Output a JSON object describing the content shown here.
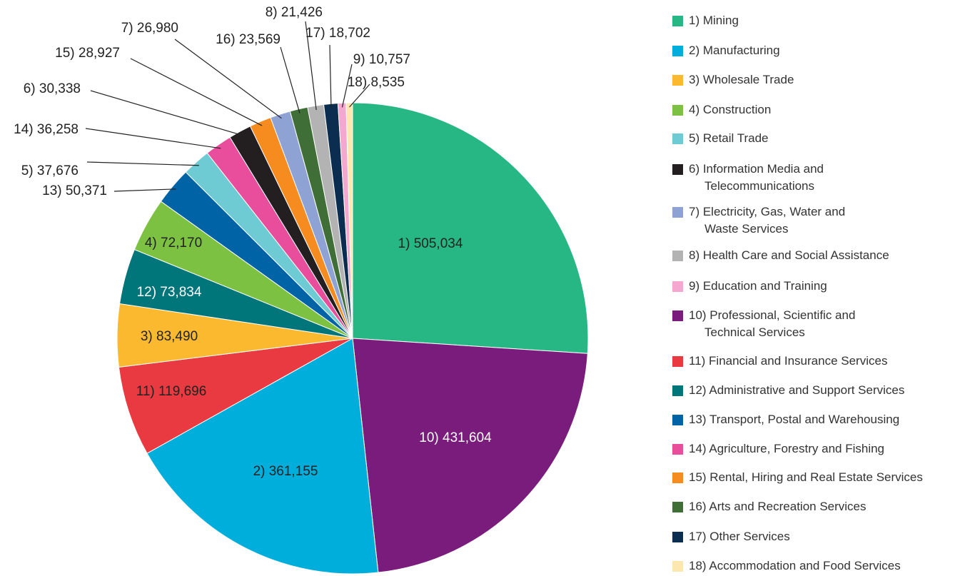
{
  "chart_data": {
    "type": "pie",
    "categories": [
      "1) Mining",
      "10) Professional, Scientific and\nTechnical Services",
      "2) Manufacturing",
      "11) Financial and Insurance Services",
      "3) Wholesale Trade",
      "12) Administrative and Support Services",
      "4) Construction",
      "13) Transport, Postal and Warehousing",
      "5) Retail Trade",
      "14) Agriculture, Forestry and Fishing",
      "6) Information Media and\nTelecommunications",
      "15) Rental, Hiring and Real Estate Services",
      "7) Electricity, Gas, Water and\nWaste Services",
      "16) Arts and Recreation Services",
      "8) Health Care and Social Assistance",
      "17) Other Services",
      "9) Education and Training",
      "18) Accommodation and Food Services"
    ],
    "values": [
      505034,
      431604,
      361155,
      119696,
      83490,
      73834,
      72170,
      50371,
      37676,
      36258,
      30338,
      28927,
      26980,
      23569,
      21426,
      18702,
      10757,
      8535
    ],
    "value_labels": [
      "1) 505,034",
      "10) 431,604",
      "2) 361,155",
      "11) 119,696",
      "3) 83,490",
      "12) 73,834",
      "4) 72,170",
      "13) 50,371",
      "5) 37,676",
      "14) 36,258",
      "6) 30,338",
      "15) 28,927",
      "7) 26,980",
      "16) 23,569",
      "8) 21,426",
      "17) 18,702",
      "9) 10,757",
      "18) 8,535"
    ],
    "colors": [
      "#27b784",
      "#7a1c7b",
      "#00aedb",
      "#e83a40",
      "#fbb92f",
      "#00767a",
      "#7cc142",
      "#0063a6",
      "#6ecbd3",
      "#e94e9d",
      "#231f20",
      "#f68b1f",
      "#8fa2d4",
      "#3f6e37",
      "#b3b3b3",
      "#0b2d4f",
      "#f4a7cf",
      "#fde7b0"
    ],
    "legend": true
  }
}
